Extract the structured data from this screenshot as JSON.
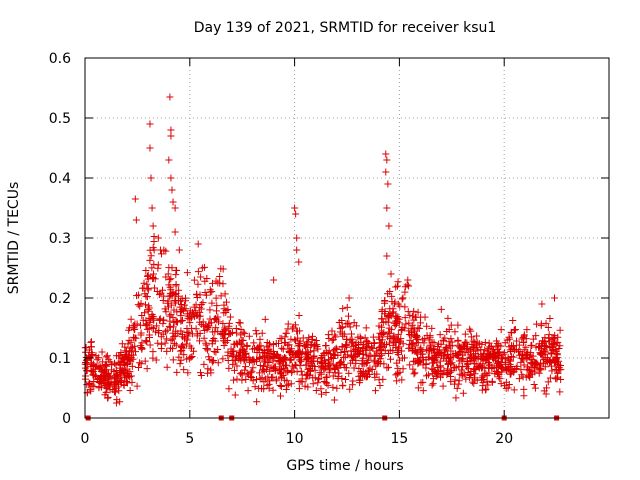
{
  "chart_data": {
    "type": "scatter",
    "title": "Day 139 of 2021, SRMTID for receiver ksu1",
    "xlabel": "GPS time / hours",
    "ylabel": "SRMTID / TECUs",
    "xlim": [
      0,
      25
    ],
    "ylim": [
      0,
      0.6
    ],
    "x_ticks": [
      0,
      5,
      10,
      15,
      20
    ],
    "x_tick_labels": [
      "0",
      "5",
      "10",
      "15",
      "20"
    ],
    "y_ticks": [
      0,
      0.1,
      0.2,
      0.3,
      0.4,
      0.5,
      0.6
    ],
    "y_tick_labels": [
      "0",
      "0.1",
      "0.2",
      "0.3",
      "0.4",
      "0.5",
      "0.6"
    ],
    "grid": true,
    "marker": "plus",
    "color": "#dd0000",
    "baseline_markers_x": [
      0.15,
      6.5,
      7.0,
      14.3,
      20.0,
      22.5
    ],
    "baseline_anchor_points": [
      [
        0.0,
        0.09
      ],
      [
        0.5,
        0.08
      ],
      [
        1.0,
        0.07
      ],
      [
        1.4,
        0.06
      ],
      [
        1.8,
        0.08
      ],
      [
        2.2,
        0.11
      ],
      [
        2.6,
        0.15
      ],
      [
        3.0,
        0.18
      ],
      [
        3.3,
        0.21
      ],
      [
        3.6,
        0.17
      ],
      [
        4.0,
        0.2
      ],
      [
        4.3,
        0.17
      ],
      [
        4.7,
        0.15
      ],
      [
        5.2,
        0.17
      ],
      [
        5.6,
        0.15
      ],
      [
        6.0,
        0.15
      ],
      [
        6.5,
        0.18
      ],
      [
        7.0,
        0.12
      ],
      [
        7.5,
        0.1
      ],
      [
        8.0,
        0.09
      ],
      [
        8.5,
        0.1
      ],
      [
        9.0,
        0.09
      ],
      [
        9.5,
        0.1
      ],
      [
        10.0,
        0.12
      ],
      [
        10.5,
        0.1
      ],
      [
        11.0,
        0.1
      ],
      [
        11.5,
        0.09
      ],
      [
        12.0,
        0.1
      ],
      [
        12.5,
        0.12
      ],
      [
        13.0,
        0.1
      ],
      [
        13.5,
        0.1
      ],
      [
        14.0,
        0.11
      ],
      [
        14.4,
        0.16
      ],
      [
        14.8,
        0.14
      ],
      [
        15.2,
        0.15
      ],
      [
        15.6,
        0.13
      ],
      [
        16.0,
        0.11
      ],
      [
        16.5,
        0.1
      ],
      [
        17.0,
        0.11
      ],
      [
        17.5,
        0.1
      ],
      [
        18.0,
        0.1
      ],
      [
        18.5,
        0.1
      ],
      [
        19.0,
        0.09
      ],
      [
        19.5,
        0.1
      ],
      [
        20.0,
        0.09
      ],
      [
        20.5,
        0.11
      ],
      [
        21.0,
        0.1
      ],
      [
        21.5,
        0.1
      ],
      [
        22.0,
        0.11
      ],
      [
        22.5,
        0.1
      ],
      [
        22.7,
        0.09
      ]
    ],
    "series": [
      {
        "name": "notable points",
        "points": [
          [
            2.4,
            0.365
          ],
          [
            2.45,
            0.33
          ],
          [
            3.1,
            0.49
          ],
          [
            3.1,
            0.45
          ],
          [
            3.15,
            0.4
          ],
          [
            3.2,
            0.35
          ],
          [
            3.25,
            0.32
          ],
          [
            3.3,
            0.28
          ],
          [
            3.5,
            0.3
          ],
          [
            3.6,
            0.28
          ],
          [
            4.05,
            0.535
          ],
          [
            4.1,
            0.48
          ],
          [
            4.1,
            0.47
          ],
          [
            4.0,
            0.43
          ],
          [
            4.1,
            0.4
          ],
          [
            4.15,
            0.38
          ],
          [
            4.2,
            0.36
          ],
          [
            4.3,
            0.35
          ],
          [
            4.3,
            0.31
          ],
          [
            4.5,
            0.28
          ],
          [
            5.4,
            0.29
          ],
          [
            5.6,
            0.25
          ],
          [
            9.0,
            0.23
          ],
          [
            10.0,
            0.35
          ],
          [
            10.05,
            0.34
          ],
          [
            10.1,
            0.3
          ],
          [
            10.1,
            0.28
          ],
          [
            10.2,
            0.26
          ],
          [
            12.6,
            0.2
          ],
          [
            14.35,
            0.44
          ],
          [
            14.4,
            0.43
          ],
          [
            14.35,
            0.41
          ],
          [
            14.45,
            0.39
          ],
          [
            14.4,
            0.35
          ],
          [
            14.5,
            0.32
          ],
          [
            14.4,
            0.27
          ],
          [
            14.6,
            0.24
          ],
          [
            15.4,
            0.23
          ],
          [
            21.8,
            0.19
          ],
          [
            22.4,
            0.2
          ],
          [
            1.5,
            0.025
          ],
          [
            11.9,
            0.03
          ],
          [
            22.0,
            0.04
          ]
        ]
      }
    ]
  }
}
